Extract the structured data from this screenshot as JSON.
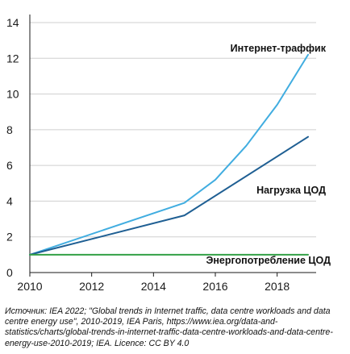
{
  "chart_data": {
    "type": "line",
    "title": "",
    "xlabel": "",
    "ylabel": "",
    "xlim": [
      2010,
      2019
    ],
    "ylim": [
      0,
      14
    ],
    "xticks": [
      2010,
      2012,
      2014,
      2016,
      2018
    ],
    "yticks": [
      0,
      2,
      4,
      6,
      8,
      10,
      12,
      14
    ],
    "grid": "horizontal",
    "legend": "inline labels",
    "series": [
      {
        "name": "Интернет-траффик",
        "color": "#41ade0",
        "x": [
          2010,
          2015,
          2016,
          2017,
          2018,
          2019
        ],
        "y": [
          1.0,
          3.9,
          5.2,
          7.1,
          9.4,
          12.2
        ]
      },
      {
        "name": "Нагрузка ЦОД",
        "color": "#1f5f93",
        "x": [
          2010,
          2015,
          2019
        ],
        "y": [
          1.0,
          3.2,
          7.6
        ]
      },
      {
        "name": "Энергопотребление ЦОД",
        "color": "#33a046",
        "x": [
          2010,
          2019
        ],
        "y": [
          1.0,
          1.0
        ]
      }
    ]
  },
  "source_note": "Источник: IEA 2022; \"Global trends in Internet traffic, data centre workloads and data centre energy use\", 2010-2019, IEA Paris, https://www.iea.org/data-and-statistics/charts/global-trends-in-internet-traffic-data-centre-workloads-and-data-centre-energy-use-2010-2019; IEA. Licence: CC BY 4.0"
}
